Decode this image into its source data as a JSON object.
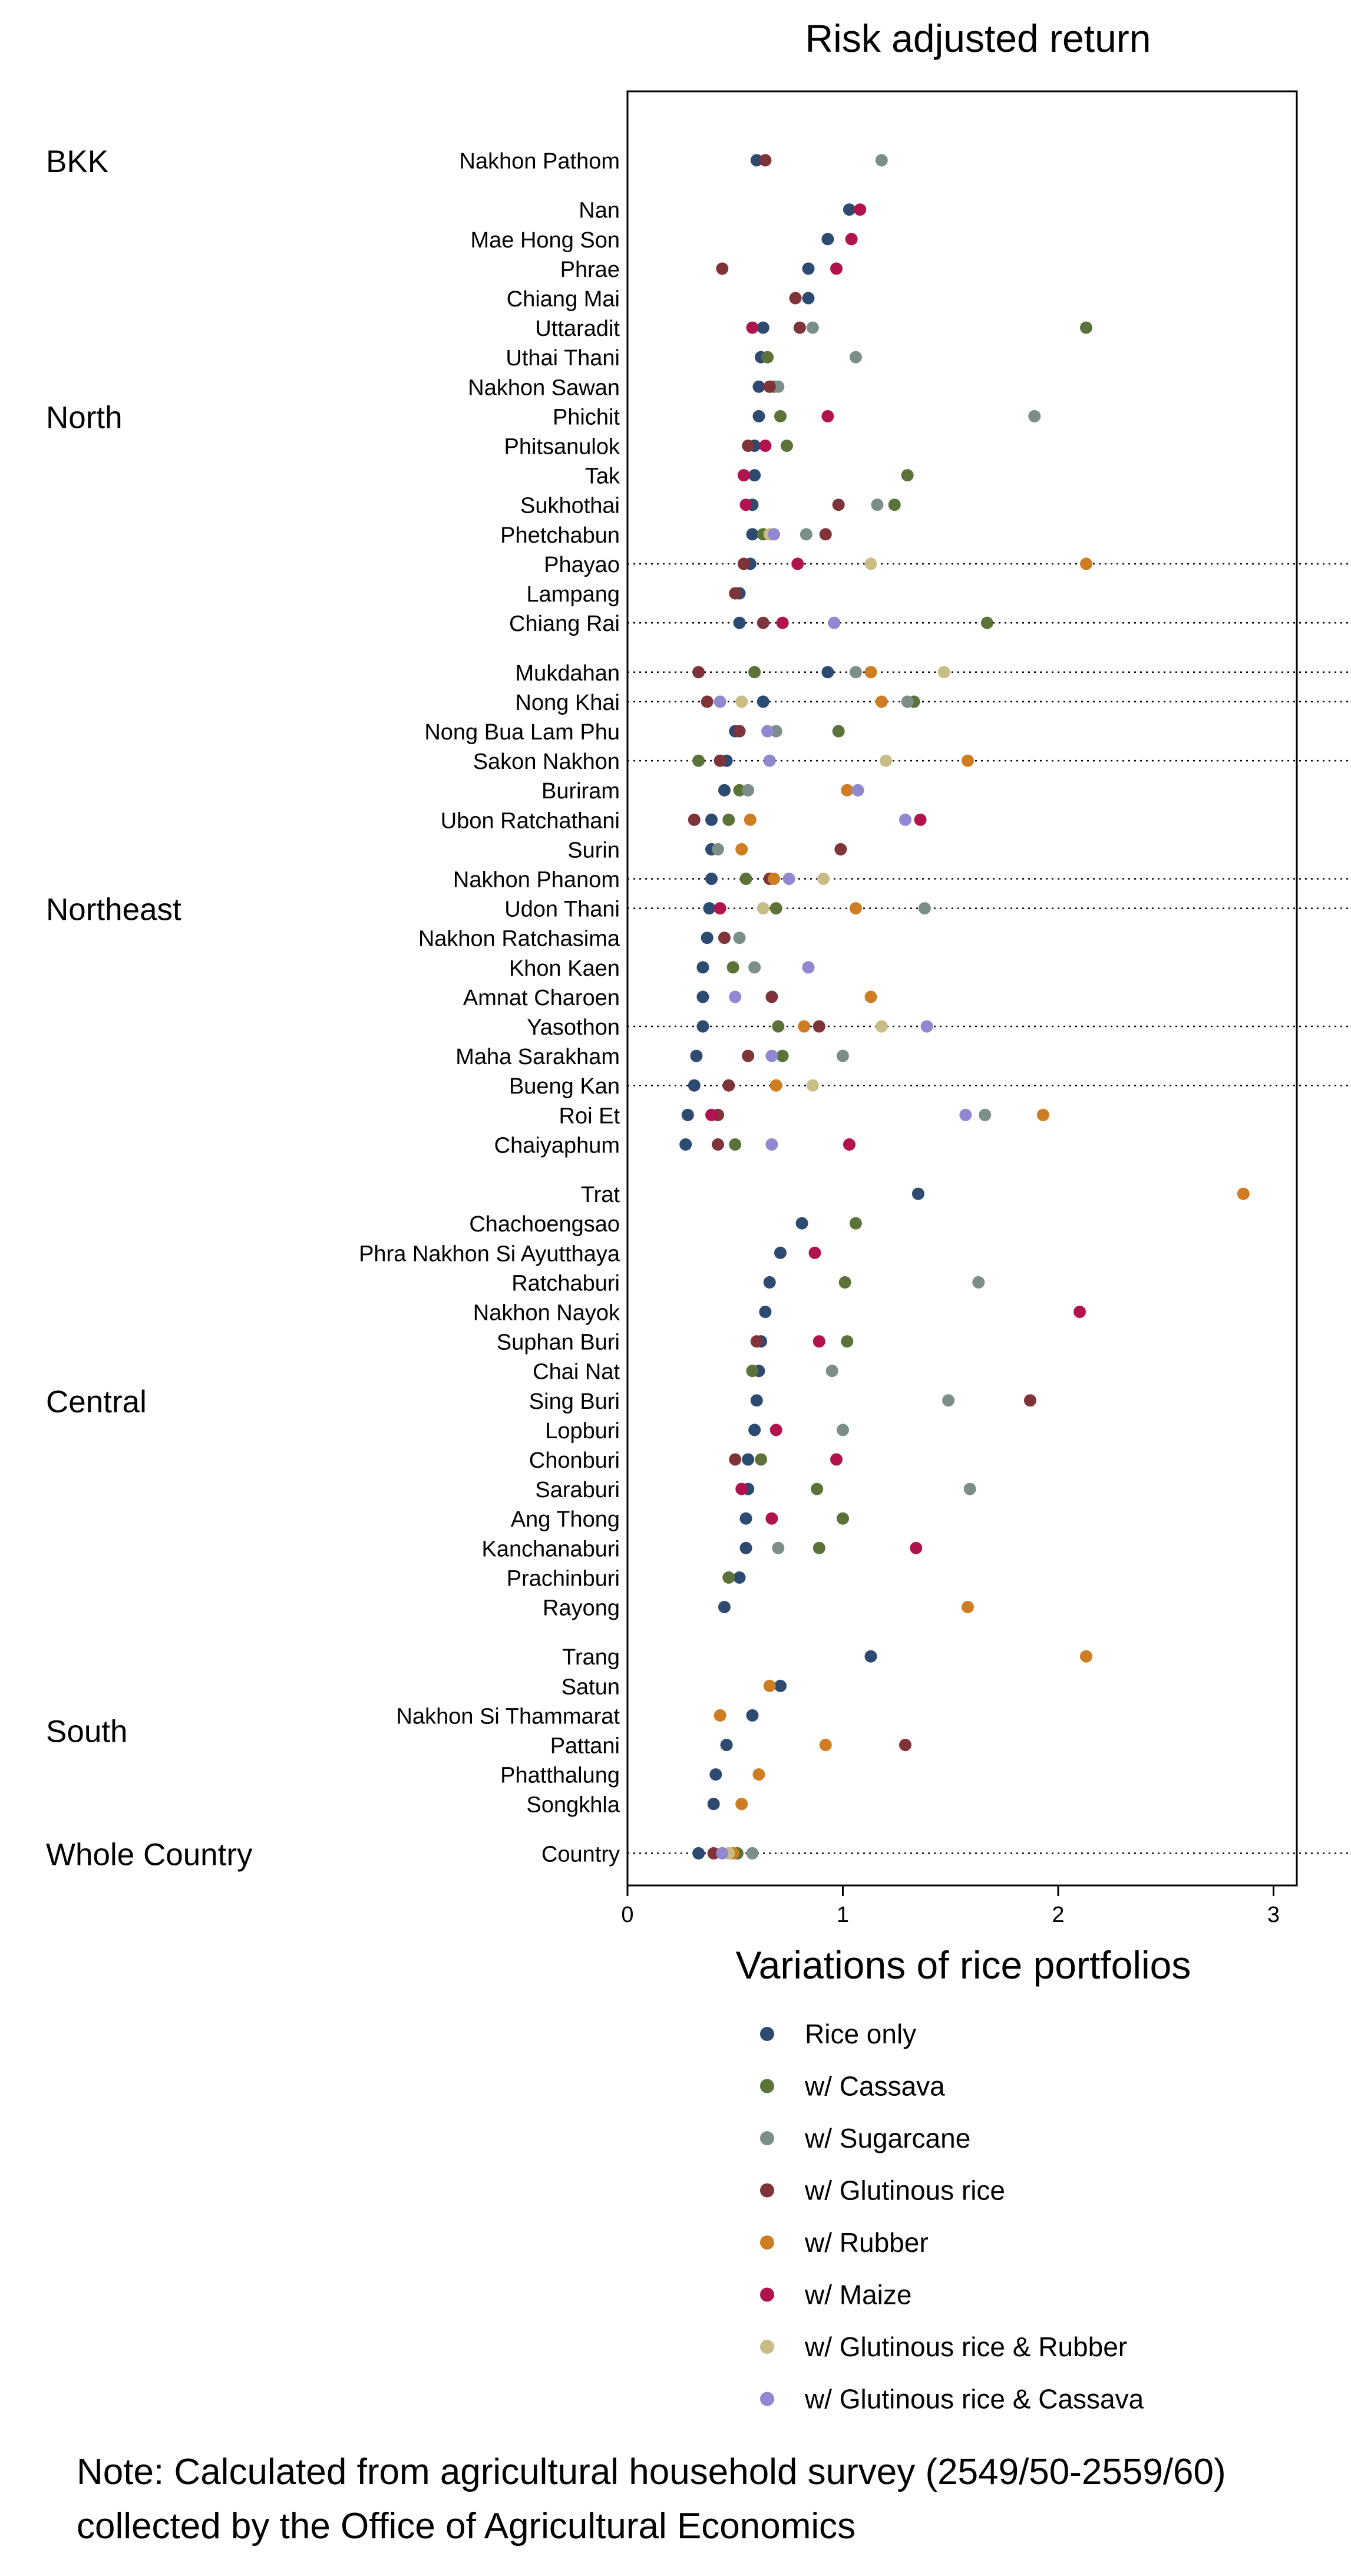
{
  "chart_data": {
    "type": "scatter",
    "title": "Risk adjusted return",
    "xlabel": "Variations of rice portfolios",
    "xlim": [
      0,
      3.1
    ],
    "xticks": [
      0,
      1,
      2,
      3
    ],
    "legend_position": "bottom",
    "series": [
      {
        "key": "rice",
        "name": "Rice only",
        "color": "#2d4a70"
      },
      {
        "key": "cassava",
        "name": "w/ Cassava",
        "color": "#5b7238"
      },
      {
        "key": "sugarcane",
        "name": "w/ Sugarcane",
        "color": "#7b8f87"
      },
      {
        "key": "glutinous",
        "name": "w/ Glutinous rice",
        "color": "#7e3438"
      },
      {
        "key": "rubber",
        "name": "w/ Rubber",
        "color": "#cf7d23"
      },
      {
        "key": "maize",
        "name": "w/ Maize",
        "color": "#b0134e"
      },
      {
        "key": "glut_rubber",
        "name": "w/ Glutinous rice & Rubber",
        "color": "#c9bd86"
      },
      {
        "key": "glut_cassava",
        "name": "w/ Glutinous rice & Cassava",
        "color": "#9088d0"
      }
    ],
    "regions": [
      {
        "name": "BKK",
        "rows": [
          {
            "province": "Nakhon Pathom",
            "values": {
              "rice": 0.6,
              "glutinous": 0.64,
              "sugarcane": 1.18
            }
          }
        ]
      },
      {
        "name": "North",
        "rows": [
          {
            "province": "Nan",
            "values": {
              "rice": 1.03,
              "maize": 1.08
            }
          },
          {
            "province": "Mae Hong Son",
            "values": {
              "rice": 0.93,
              "maize": 1.04
            }
          },
          {
            "province": "Phrae",
            "values": {
              "glutinous": 0.44,
              "rice": 0.84,
              "maize": 0.97
            }
          },
          {
            "province": "Chiang Mai",
            "values": {
              "glutinous": 0.78,
              "rice": 0.84
            }
          },
          {
            "province": "Uttaradit",
            "values": {
              "maize": 0.58,
              "rice": 0.63,
              "glutinous": 0.8,
              "sugarcane": 0.86,
              "cassava": 2.13
            }
          },
          {
            "province": "Uthai Thani",
            "values": {
              "rice": 0.62,
              "cassava": 0.65,
              "sugarcane": 1.06
            }
          },
          {
            "province": "Nakhon Sawan",
            "values": {
              "rice": 0.61,
              "glutinous": 0.66,
              "cassava": 0.68,
              "sugarcane": 0.7
            }
          },
          {
            "province": "Phichit",
            "values": {
              "rice": 0.61,
              "cassava": 0.71,
              "maize": 0.93,
              "sugarcane": 1.89
            }
          },
          {
            "province": "Phitsanulok",
            "values": {
              "glutinous": 0.56,
              "rice": 0.59,
              "maize": 0.64,
              "cassava": 0.74
            }
          },
          {
            "province": "Tak",
            "values": {
              "maize": 0.54,
              "rice": 0.59,
              "cassava": 1.3
            }
          },
          {
            "province": "Sukhothai",
            "values": {
              "maize": 0.55,
              "rice": 0.58,
              "glutinous": 0.98,
              "sugarcane": 1.16,
              "cassava": 1.24
            }
          },
          {
            "province": "Phetchabun",
            "values": {
              "rice": 0.58,
              "cassava": 0.63,
              "glut_rubber": 0.66,
              "glut_cassava": 0.68,
              "sugarcane": 0.83,
              "glutinous": 0.92
            }
          },
          {
            "province": "Phayao",
            "values": {
              "glutinous": 0.54,
              "rice": 0.57,
              "maize": 0.79,
              "glut_rubber": 1.13,
              "rubber": 2.13
            }
          },
          {
            "province": "Lampang",
            "values": {
              "glutinous": 0.5,
              "rice": 0.52
            }
          },
          {
            "province": "Chiang Rai",
            "values": {
              "rice": 0.52,
              "glutinous": 0.63,
              "maize": 0.72,
              "glut_cassava": 0.96,
              "cassava": 1.67
            }
          }
        ]
      },
      {
        "name": "Northeast",
        "rows": [
          {
            "province": "Mukdahan",
            "values": {
              "glutinous": 0.33,
              "cassava": 0.59,
              "rice": 0.93,
              "sugarcane": 1.06,
              "rubber": 1.13,
              "glut_rubber": 1.47
            }
          },
          {
            "province": "Nong Khai",
            "values": {
              "glutinous": 0.37,
              "glut_cassava": 0.43,
              "glut_rubber": 0.53,
              "rice": 0.63,
              "rubber": 1.18,
              "sugarcane": 1.3,
              "cassava": 1.33
            }
          },
          {
            "province": "Nong Bua Lam Phu",
            "values": {
              "rice": 0.5,
              "glutinous": 0.52,
              "glut_cassava": 0.65,
              "sugarcane": 0.69,
              "cassava": 0.98
            }
          },
          {
            "province": "Sakon Nakhon",
            "values": {
              "cassava": 0.33,
              "glutinous": 0.43,
              "rice": 0.46,
              "glut_cassava": 0.66,
              "glut_rubber": 1.2,
              "rubber": 1.58
            }
          },
          {
            "province": "Buriram",
            "values": {
              "rice": 0.45,
              "cassava": 0.52,
              "sugarcane": 0.56,
              "rubber": 1.02,
              "glut_cassava": 1.07
            }
          },
          {
            "province": "Ubon Ratchathani",
            "values": {
              "glutinous": 0.31,
              "rice": 0.39,
              "cassava": 0.47,
              "rubber": 0.57,
              "glut_cassava": 1.29,
              "maize": 1.36
            }
          },
          {
            "province": "Surin",
            "values": {
              "rice": 0.39,
              "sugarcane": 0.42,
              "rubber": 0.53,
              "glutinous": 0.99
            }
          },
          {
            "province": "Nakhon Phanom",
            "values": {
              "rice": 0.39,
              "cassava": 0.55,
              "glutinous": 0.66,
              "rubber": 0.68,
              "glut_cassava": 0.75,
              "glut_rubber": 0.91
            }
          },
          {
            "province": "Udon Thani",
            "values": {
              "rice": 0.38,
              "maize": 0.43,
              "glut_rubber": 0.63,
              "cassava": 0.69,
              "rubber": 1.06,
              "sugarcane": 1.38
            }
          },
          {
            "province": "Nakhon Ratchasima",
            "values": {
              "rice": 0.37,
              "glutinous": 0.45,
              "sugarcane": 0.52
            }
          },
          {
            "province": "Khon Kaen",
            "values": {
              "rice": 0.35,
              "cassava": 0.49,
              "sugarcane": 0.59,
              "glut_cassava": 0.84
            }
          },
          {
            "province": "Amnat Charoen",
            "values": {
              "rice": 0.35,
              "glut_cassava": 0.5,
              "glutinous": 0.67,
              "rubber": 1.13
            }
          },
          {
            "province": "Yasothon",
            "values": {
              "rice": 0.35,
              "cassava": 0.7,
              "rubber": 0.82,
              "glutinous": 0.89,
              "glut_rubber": 1.18,
              "glut_cassava": 1.39
            }
          },
          {
            "province": "Maha Sarakham",
            "values": {
              "rice": 0.32,
              "glutinous": 0.56,
              "glut_cassava": 0.67,
              "cassava": 0.72,
              "sugarcane": 1.0
            }
          },
          {
            "province": "Bueng Kan",
            "values": {
              "rice": 0.31,
              "glutinous": 0.47,
              "rubber": 0.69,
              "glut_rubber": 0.86
            }
          },
          {
            "province": "Roi Et",
            "values": {
              "rice": 0.28,
              "maize": 0.39,
              "glutinous": 0.42,
              "glut_cassava": 1.57,
              "sugarcane": 1.66,
              "rubber": 1.93
            }
          },
          {
            "province": "Chaiyaphum",
            "values": {
              "rice": 0.27,
              "glutinous": 0.42,
              "cassava": 0.5,
              "glut_cassava": 0.67,
              "maize": 1.03
            }
          }
        ]
      },
      {
        "name": "Central",
        "rows": [
          {
            "province": "Trat",
            "values": {
              "rice": 1.35,
              "rubber": 2.86
            }
          },
          {
            "province": "Chachoengsao",
            "values": {
              "rice": 0.81,
              "cassava": 1.06
            }
          },
          {
            "province": "Phra Nakhon Si Ayutthaya",
            "values": {
              "rice": 0.71,
              "maize": 0.87
            }
          },
          {
            "province": "Ratchaburi",
            "values": {
              "rice": 0.66,
              "cassava": 1.01,
              "sugarcane": 1.63
            }
          },
          {
            "province": "Nakhon Nayok",
            "values": {
              "rice": 0.64,
              "maize": 2.1
            }
          },
          {
            "province": "Suphan Buri",
            "values": {
              "glutinous": 0.6,
              "rice": 0.62,
              "maize": 0.89,
              "cassava": 1.02
            }
          },
          {
            "province": "Chai Nat",
            "values": {
              "cassava": 0.58,
              "rice": 0.61,
              "sugarcane": 0.95
            }
          },
          {
            "province": "Sing Buri",
            "values": {
              "rice": 0.6,
              "sugarcane": 1.49,
              "glutinous": 1.87
            }
          },
          {
            "province": "Lopburi",
            "values": {
              "rice": 0.59,
              "maize": 0.69,
              "sugarcane": 1.0
            }
          },
          {
            "province": "Chonburi",
            "values": {
              "glutinous": 0.5,
              "rice": 0.56,
              "cassava": 0.62,
              "maize": 0.97
            }
          },
          {
            "province": "Saraburi",
            "values": {
              "maize": 0.53,
              "rice": 0.56,
              "cassava": 0.88,
              "sugarcane": 1.59
            }
          },
          {
            "province": "Ang Thong",
            "values": {
              "rice": 0.55,
              "maize": 0.67,
              "cassava": 1.0
            }
          },
          {
            "province": "Kanchanaburi",
            "values": {
              "rice": 0.55,
              "sugarcane": 0.7,
              "cassava": 0.89,
              "maize": 1.34
            }
          },
          {
            "province": "Prachinburi",
            "values": {
              "cassava": 0.47,
              "rice": 0.52
            }
          },
          {
            "province": "Rayong",
            "values": {
              "rice": 0.45,
              "rubber": 1.58
            }
          }
        ]
      },
      {
        "name": "South",
        "rows": [
          {
            "province": "Trang",
            "values": {
              "rice": 1.13,
              "rubber": 2.13
            }
          },
          {
            "province": "Satun",
            "values": {
              "rubber": 0.66,
              "rice": 0.71
            }
          },
          {
            "province": "Nakhon Si Thammarat",
            "values": {
              "rubber": 0.43,
              "rice": 0.58
            }
          },
          {
            "province": "Pattani",
            "values": {
              "rice": 0.46,
              "rubber": 0.92,
              "glutinous": 1.29
            }
          },
          {
            "province": "Phatthalung",
            "values": {
              "rice": 0.41,
              "rubber": 0.61
            }
          },
          {
            "province": "Songkhla",
            "values": {
              "rice": 0.4,
              "rubber": 0.53
            }
          }
        ]
      },
      {
        "name": "Whole Country",
        "rows": [
          {
            "province": "Country",
            "values": {
              "rice": 0.33,
              "glutinous": 0.4,
              "glut_cassava": 0.44,
              "glut_rubber": 0.47,
              "rubber": 0.49,
              "cassava": 0.51,
              "sugarcane": 0.58
            }
          }
        ]
      }
    ],
    "dotted_rows": [
      "Phayao",
      "Chiang Rai",
      "Mukdahan",
      "Nong Khai",
      "Sakon Nakhon",
      "Nakhon Phanom",
      "Udon Thani",
      "Yasothon",
      "Bueng Kan",
      "Country"
    ]
  },
  "note": {
    "line1": "Note: Calculated from agricultural household survey (2549/50-2559/60)",
    "line2": "collected by the Office of Agricultural Economics"
  }
}
